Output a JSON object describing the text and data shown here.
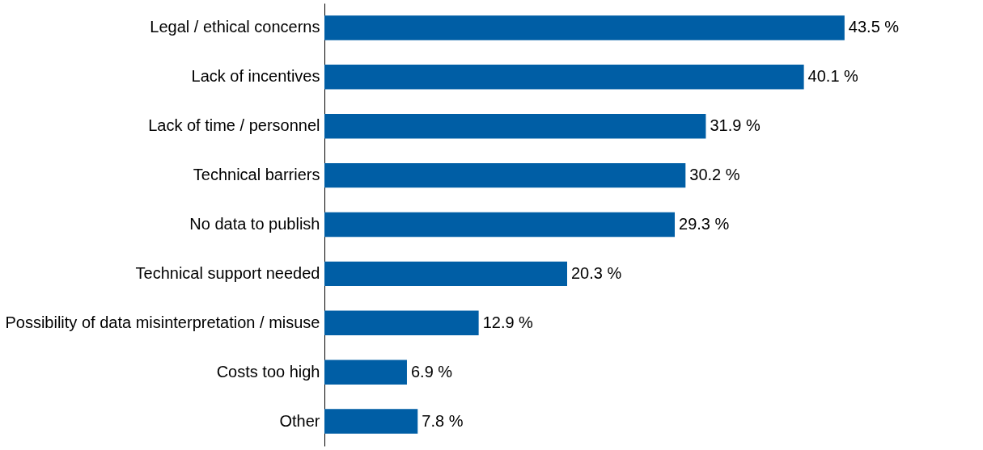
{
  "chart_data": {
    "type": "bar",
    "orientation": "horizontal",
    "categories": [
      "Legal / ethical concerns",
      "Lack of incentives",
      "Lack of time / personnel",
      "Technical barriers",
      "No data to publish",
      "Technical support needed",
      "Possibility of data misinterpretation / misuse",
      "Costs too high",
      "Other"
    ],
    "values": [
      43.5,
      40.1,
      31.9,
      30.2,
      29.3,
      20.3,
      12.9,
      6.9,
      7.8
    ],
    "value_labels": [
      "43.5 %",
      "40.1 %",
      "31.9 %",
      "30.2 %",
      "29.3 %",
      "20.3 %",
      "12.9 %",
      "6.9 %",
      "7.8 %"
    ],
    "color": "#005ea5"
  }
}
